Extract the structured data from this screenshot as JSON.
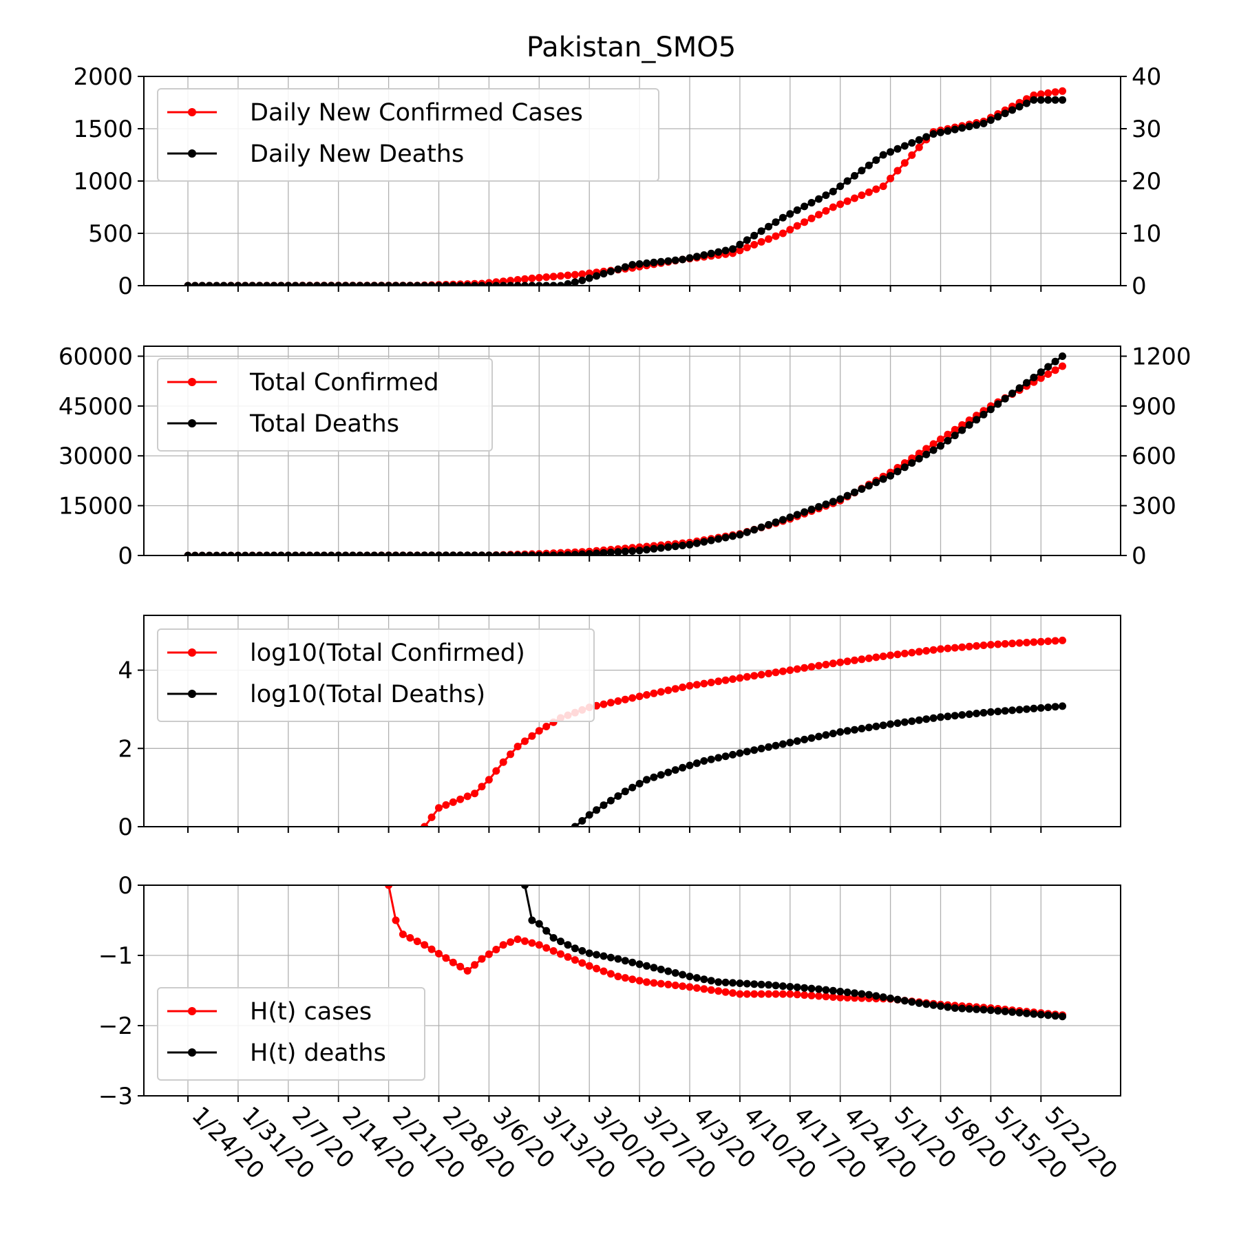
{
  "title": "Pakistan_SMO5",
  "colors": {
    "cases": "#ff0000",
    "deaths": "#000000",
    "grid": "#b0b0b0"
  },
  "x_tick_labels": [
    "1/24/20",
    "1/31/20",
    "2/7/20",
    "2/14/20",
    "2/21/20",
    "2/28/20",
    "3/6/20",
    "3/13/20",
    "3/20/20",
    "3/27/20",
    "4/3/20",
    "4/10/20",
    "4/17/20",
    "4/24/20",
    "5/1/20",
    "5/8/20",
    "5/15/20",
    "5/22/20"
  ],
  "chart_data": [
    {
      "type": "line",
      "legend_position": "upper-left",
      "grid": true,
      "x_range": [
        "1/24/20",
        "5/25/20"
      ],
      "ylim_left": [
        0,
        2000
      ],
      "ylim_right": [
        0,
        40
      ],
      "yticks_left": [
        "0",
        "500",
        "1000",
        "1500",
        "2000"
      ],
      "yticks_right": [
        "0",
        "10",
        "20",
        "30",
        "40"
      ],
      "series": [
        {
          "name": "Daily New Confirmed Cases",
          "axis": "left",
          "color": "#ff0000",
          "points": [
            [
              "1/24/20",
              0
            ],
            [
              "2/25/20",
              2
            ],
            [
              "3/5/20",
              20
            ],
            [
              "3/12/20",
              70
            ],
            [
              "3/19/20",
              110
            ],
            [
              "3/26/20",
              170
            ],
            [
              "4/2/20",
              250
            ],
            [
              "4/9/20",
              310
            ],
            [
              "4/16/20",
              500
            ],
            [
              "4/23/20",
              750
            ],
            [
              "4/30/20",
              950
            ],
            [
              "5/7/20",
              1470
            ],
            [
              "5/14/20",
              1570
            ],
            [
              "5/21/20",
              1820
            ],
            [
              "5/25/20",
              1860
            ]
          ]
        },
        {
          "name": "Daily New Deaths",
          "axis": "right",
          "color": "#000000",
          "points": [
            [
              "1/24/20",
              0
            ],
            [
              "3/16/20",
              0
            ],
            [
              "3/19/20",
              1
            ],
            [
              "3/26/20",
              4
            ],
            [
              "4/2/20",
              5
            ],
            [
              "4/9/20",
              7
            ],
            [
              "4/16/20",
              13
            ],
            [
              "4/23/20",
              18
            ],
            [
              "4/30/20",
              25
            ],
            [
              "5/7/20",
              29
            ],
            [
              "5/14/20",
              31
            ],
            [
              "5/21/20",
              35.5
            ],
            [
              "5/25/20",
              35.5
            ]
          ]
        }
      ]
    },
    {
      "type": "line",
      "legend_position": "upper-left",
      "grid": true,
      "x_range": [
        "1/24/20",
        "5/25/20"
      ],
      "ylim_left": [
        0,
        63000
      ],
      "ylim_right": [
        0,
        1260
      ],
      "yticks_left": [
        "0",
        "15000",
        "30000",
        "45000",
        "60000"
      ],
      "yticks_right": [
        "0",
        "300",
        "600",
        "900",
        "1200"
      ],
      "series": [
        {
          "name": "Total Confirmed",
          "axis": "left",
          "color": "#ff0000",
          "points": [
            [
              "1/24/20",
              0
            ],
            [
              "3/6/20",
              50
            ],
            [
              "3/13/20",
              500
            ],
            [
              "3/20/20",
              1200
            ],
            [
              "3/27/20",
              2500
            ],
            [
              "4/3/20",
              3900
            ],
            [
              "4/10/20",
              6500
            ],
            [
              "4/17/20",
              11000
            ],
            [
              "4/24/20",
              16500
            ],
            [
              "5/1/20",
              25000
            ],
            [
              "5/8/20",
              35000
            ],
            [
              "5/15/20",
              45000
            ],
            [
              "5/25/20",
              57000
            ]
          ]
        },
        {
          "name": "Total Deaths",
          "axis": "right",
          "color": "#000000",
          "points": [
            [
              "1/24/20",
              0
            ],
            [
              "3/16/20",
              1
            ],
            [
              "3/20/20",
              10
            ],
            [
              "3/27/20",
              30
            ],
            [
              "4/3/20",
              65
            ],
            [
              "4/10/20",
              125
            ],
            [
              "4/17/20",
              230
            ],
            [
              "4/24/20",
              340
            ],
            [
              "5/1/20",
              480
            ],
            [
              "5/8/20",
              660
            ],
            [
              "5/15/20",
              880
            ],
            [
              "5/25/20",
              1200
            ]
          ]
        }
      ]
    },
    {
      "type": "line",
      "legend_position": "upper-left",
      "grid": true,
      "x_range": [
        "1/24/20",
        "5/25/20"
      ],
      "ylim": [
        0,
        5.4
      ],
      "yticks": [
        "0",
        "2",
        "4"
      ],
      "series": [
        {
          "name": "log10(Total Confirmed)",
          "color": "#ff0000",
          "points": [
            [
              "2/26/20",
              0
            ],
            [
              "2/28/20",
              0.48
            ],
            [
              "3/2/20",
              0.7
            ],
            [
              "3/4/20",
              0.85
            ],
            [
              "3/6/20",
              1.2
            ],
            [
              "3/8/20",
              1.65
            ],
            [
              "3/10/20",
              2.05
            ],
            [
              "3/13/20",
              2.45
            ],
            [
              "3/16/20",
              2.78
            ],
            [
              "3/20/20",
              3.05
            ],
            [
              "3/27/20",
              3.33
            ],
            [
              "4/3/20",
              3.6
            ],
            [
              "4/10/20",
              3.8
            ],
            [
              "4/17/20",
              4.0
            ],
            [
              "4/24/20",
              4.2
            ],
            [
              "5/1/20",
              4.38
            ],
            [
              "5/8/20",
              4.54
            ],
            [
              "5/15/20",
              4.65
            ],
            [
              "5/25/20",
              4.76
            ]
          ]
        },
        {
          "name": "log10(Total Deaths)",
          "color": "#000000",
          "points": [
            [
              "3/18/20",
              0
            ],
            [
              "3/20/20",
              0.3
            ],
            [
              "3/22/20",
              0.55
            ],
            [
              "3/25/20",
              0.9
            ],
            [
              "3/28/20",
              1.2
            ],
            [
              "4/1/20",
              1.45
            ],
            [
              "4/5/20",
              1.68
            ],
            [
              "4/10/20",
              1.88
            ],
            [
              "4/17/20",
              2.15
            ],
            [
              "4/24/20",
              2.42
            ],
            [
              "5/1/20",
              2.62
            ],
            [
              "5/8/20",
              2.8
            ],
            [
              "5/15/20",
              2.93
            ],
            [
              "5/25/20",
              3.08
            ]
          ]
        }
      ]
    },
    {
      "type": "line",
      "legend_position": "lower-left",
      "grid": true,
      "x_range": [
        "1/24/20",
        "5/25/20"
      ],
      "ylim": [
        -3,
        0
      ],
      "yticks": [
        "−3",
        "−2",
        "−1",
        "0"
      ],
      "series": [
        {
          "name": "H(t) cases",
          "color": "#ff0000",
          "points": [
            [
              "2/21/20",
              0
            ],
            [
              "2/22/20",
              -0.5
            ],
            [
              "2/23/20",
              -0.7
            ],
            [
              "2/26/20",
              -0.85
            ],
            [
              "3/1/20",
              -1.1
            ],
            [
              "3/3/20",
              -1.22
            ],
            [
              "3/5/20",
              -1.05
            ],
            [
              "3/8/20",
              -0.85
            ],
            [
              "3/10/20",
              -0.77
            ],
            [
              "3/13/20",
              -0.85
            ],
            [
              "3/16/20",
              -0.98
            ],
            [
              "3/20/20",
              -1.15
            ],
            [
              "3/24/20",
              -1.3
            ],
            [
              "3/28/20",
              -1.38
            ],
            [
              "4/3/20",
              -1.45
            ],
            [
              "4/10/20",
              -1.55
            ],
            [
              "4/17/20",
              -1.55
            ],
            [
              "4/24/20",
              -1.6
            ],
            [
              "5/1/20",
              -1.62
            ],
            [
              "5/8/20",
              -1.7
            ],
            [
              "5/15/20",
              -1.75
            ],
            [
              "5/25/20",
              -1.85
            ]
          ]
        },
        {
          "name": "H(t) deaths",
          "color": "#000000",
          "points": [
            [
              "3/11/20",
              0
            ],
            [
              "3/12/20",
              -0.5
            ],
            [
              "3/13/20",
              -0.55
            ],
            [
              "3/15/20",
              -0.75
            ],
            [
              "3/18/20",
              -0.9
            ],
            [
              "3/20/20",
              -0.97
            ],
            [
              "3/24/20",
              -1.05
            ],
            [
              "3/28/20",
              -1.15
            ],
            [
              "4/3/20",
              -1.3
            ],
            [
              "4/7/20",
              -1.38
            ],
            [
              "4/14/20",
              -1.42
            ],
            [
              "4/21/20",
              -1.48
            ],
            [
              "4/28/20",
              -1.56
            ],
            [
              "5/5/20",
              -1.68
            ],
            [
              "5/10/20",
              -1.75
            ],
            [
              "5/15/20",
              -1.78
            ],
            [
              "5/25/20",
              -1.87
            ]
          ]
        }
      ]
    }
  ]
}
